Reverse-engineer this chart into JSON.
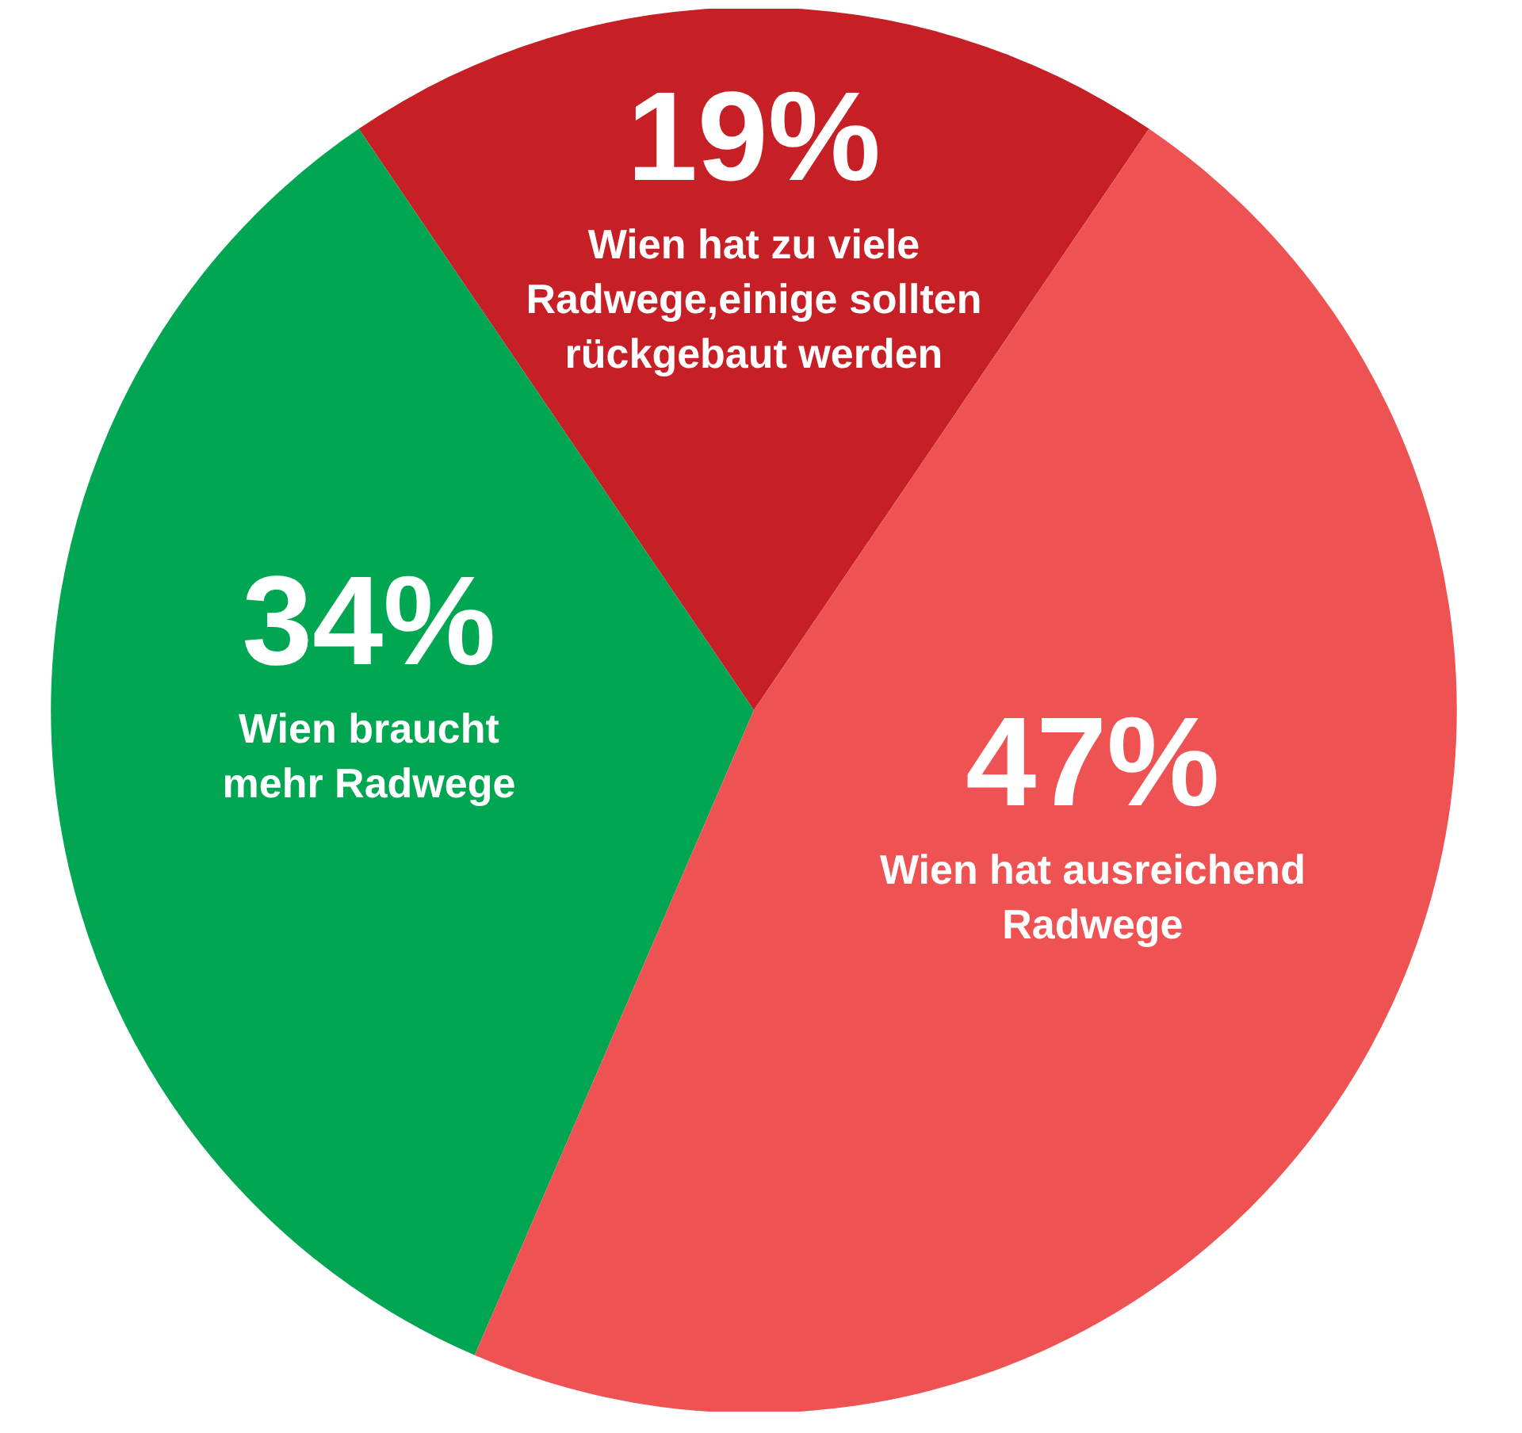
{
  "chart_data": {
    "type": "pie",
    "categories": [
      "Wien hat zu viele\nRadwege,einige sollten\nrückgebaut werden",
      "Wien braucht\nmehr Radwege",
      "Wien hat ausreichend\nRadwege"
    ],
    "values": [
      19,
      34,
      47
    ],
    "value_labels": [
      "19%",
      "34%",
      "47%"
    ],
    "colors": [
      "#c61f26",
      "#00a651",
      "#ef5253"
    ]
  }
}
